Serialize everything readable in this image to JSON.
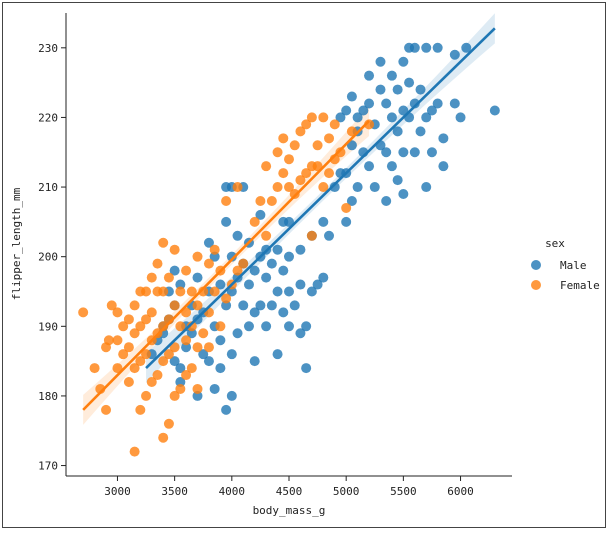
{
  "chart_data": {
    "type": "scatter",
    "title": "",
    "xlabel": "body_mass_g",
    "ylabel": "flipper_length_mm",
    "xlim": [
      2550,
      6450
    ],
    "ylim": [
      168.5,
      235
    ],
    "x_ticks": [
      3000,
      3500,
      4000,
      4500,
      5000,
      5500,
      6000
    ],
    "y_ticks": [
      170,
      180,
      190,
      200,
      210,
      220,
      230
    ],
    "grid": false,
    "legend": {
      "title": "sex",
      "position": "right",
      "entries": [
        "Male",
        "Female"
      ]
    },
    "colors": {
      "Male": "#1f77b4",
      "Female": "#ff7f0e"
    },
    "series": [
      {
        "name": "Male",
        "color": "#1f77b4",
        "regression": {
          "x0": 3250,
          "y0": 184.0,
          "x1": 6300,
          "y1": 232.8,
          "ci": 1.6
        },
        "points": [
          [
            3300,
            186
          ],
          [
            3350,
            188
          ],
          [
            3400,
            189
          ],
          [
            3400,
            190
          ],
          [
            3450,
            191
          ],
          [
            3450,
            195
          ],
          [
            3500,
            185
          ],
          [
            3500,
            193
          ],
          [
            3500,
            198
          ],
          [
            3550,
            182
          ],
          [
            3550,
            184
          ],
          [
            3550,
            196
          ],
          [
            3600,
            187
          ],
          [
            3600,
            190
          ],
          [
            3650,
            189
          ],
          [
            3650,
            193
          ],
          [
            3700,
            180
          ],
          [
            3700,
            191
          ],
          [
            3700,
            197
          ],
          [
            3750,
            186
          ],
          [
            3750,
            192
          ],
          [
            3800,
            185
          ],
          [
            3800,
            195
          ],
          [
            3800,
            202
          ],
          [
            3850,
            181
          ],
          [
            3850,
            190
          ],
          [
            3850,
            200
          ],
          [
            3900,
            184
          ],
          [
            3900,
            188
          ],
          [
            3900,
            196
          ],
          [
            3950,
            178
          ],
          [
            3950,
            193
          ],
          [
            3950,
            205
          ],
          [
            3950,
            210
          ],
          [
            4000,
            180
          ],
          [
            4000,
            186
          ],
          [
            4000,
            195
          ],
          [
            4000,
            200
          ],
          [
            4000,
            210
          ],
          [
            4050,
            189
          ],
          [
            4050,
            197
          ],
          [
            4050,
            203
          ],
          [
            4100,
            193
          ],
          [
            4100,
            199
          ],
          [
            4100,
            210
          ],
          [
            4150,
            190
          ],
          [
            4150,
            196
          ],
          [
            4150,
            202
          ],
          [
            4200,
            185
          ],
          [
            4200,
            192
          ],
          [
            4200,
            198
          ],
          [
            4250,
            193
          ],
          [
            4250,
            200
          ],
          [
            4250,
            206
          ],
          [
            4300,
            190
          ],
          [
            4300,
            197
          ],
          [
            4300,
            201
          ],
          [
            4350,
            193
          ],
          [
            4350,
            199
          ],
          [
            4400,
            186
          ],
          [
            4400,
            195
          ],
          [
            4400,
            201
          ],
          [
            4450,
            192
          ],
          [
            4450,
            198
          ],
          [
            4450,
            205
          ],
          [
            4500,
            190
          ],
          [
            4500,
            195
          ],
          [
            4500,
            200
          ],
          [
            4500,
            205
          ],
          [
            4550,
            193
          ],
          [
            4600,
            189
          ],
          [
            4600,
            196
          ],
          [
            4600,
            201
          ],
          [
            4650,
            184
          ],
          [
            4650,
            190
          ],
          [
            4700,
            195
          ],
          [
            4700,
            203
          ],
          [
            4750,
            196
          ],
          [
            4800,
            197
          ],
          [
            4800,
            205
          ],
          [
            4850,
            203
          ],
          [
            4900,
            210
          ],
          [
            4950,
            212
          ],
          [
            4950,
            220
          ],
          [
            5000,
            205
          ],
          [
            5000,
            212
          ],
          [
            5000,
            221
          ],
          [
            5050,
            208
          ],
          [
            5050,
            216
          ],
          [
            5050,
            223
          ],
          [
            5100,
            210
          ],
          [
            5100,
            218
          ],
          [
            5100,
            220
          ],
          [
            5150,
            215
          ],
          [
            5150,
            221
          ],
          [
            5200,
            213
          ],
          [
            5200,
            222
          ],
          [
            5200,
            226
          ],
          [
            5250,
            210
          ],
          [
            5250,
            219
          ],
          [
            5300,
            216
          ],
          [
            5300,
            224
          ],
          [
            5300,
            228
          ],
          [
            5350,
            208
          ],
          [
            5350,
            215
          ],
          [
            5350,
            222
          ],
          [
            5400,
            213
          ],
          [
            5400,
            220
          ],
          [
            5400,
            226
          ],
          [
            5450,
            211
          ],
          [
            5450,
            218
          ],
          [
            5450,
            224
          ],
          [
            5500,
            209
          ],
          [
            5500,
            215
          ],
          [
            5500,
            221
          ],
          [
            5500,
            228
          ],
          [
            5550,
            220
          ],
          [
            5550,
            225
          ],
          [
            5550,
            230
          ],
          [
            5600,
            215
          ],
          [
            5600,
            222
          ],
          [
            5600,
            230
          ],
          [
            5650,
            218
          ],
          [
            5650,
            224
          ],
          [
            5700,
            210
          ],
          [
            5700,
            220
          ],
          [
            5700,
            230
          ],
          [
            5750,
            215
          ],
          [
            5750,
            221
          ],
          [
            5800,
            222
          ],
          [
            5800,
            230
          ],
          [
            5850,
            213
          ],
          [
            5850,
            217
          ],
          [
            5950,
            222
          ],
          [
            5950,
            229
          ],
          [
            6000,
            220
          ],
          [
            6050,
            230
          ],
          [
            6300,
            221
          ]
        ]
      },
      {
        "name": "Female",
        "color": "#ff7f0e",
        "regression": {
          "x0": 2700,
          "y0": 178.0,
          "x1": 5200,
          "y1": 219.5,
          "ci": 1.6
        },
        "points": [
          [
            2700,
            192
          ],
          [
            2800,
            184
          ],
          [
            2850,
            181
          ],
          [
            2900,
            187
          ],
          [
            2900,
            178
          ],
          [
            2925,
            188
          ],
          [
            2950,
            193
          ],
          [
            3000,
            184
          ],
          [
            3000,
            188
          ],
          [
            3000,
            192
          ],
          [
            3050,
            186
          ],
          [
            3050,
            190
          ],
          [
            3100,
            182
          ],
          [
            3100,
            187
          ],
          [
            3100,
            191
          ],
          [
            3150,
            172
          ],
          [
            3150,
            184
          ],
          [
            3150,
            189
          ],
          [
            3150,
            193
          ],
          [
            3200,
            178
          ],
          [
            3200,
            185
          ],
          [
            3200,
            190
          ],
          [
            3200,
            195
          ],
          [
            3250,
            180
          ],
          [
            3250,
            186
          ],
          [
            3250,
            191
          ],
          [
            3250,
            195
          ],
          [
            3300,
            182
          ],
          [
            3300,
            188
          ],
          [
            3300,
            192
          ],
          [
            3300,
            197
          ],
          [
            3350,
            183
          ],
          [
            3350,
            189
          ],
          [
            3350,
            195
          ],
          [
            3350,
            199
          ],
          [
            3400,
            174
          ],
          [
            3400,
            185
          ],
          [
            3400,
            190
          ],
          [
            3400,
            195
          ],
          [
            3400,
            202
          ],
          [
            3450,
            176
          ],
          [
            3450,
            186
          ],
          [
            3450,
            191
          ],
          [
            3450,
            197
          ],
          [
            3500,
            180
          ],
          [
            3500,
            187
          ],
          [
            3500,
            193
          ],
          [
            3500,
            201
          ],
          [
            3550,
            181
          ],
          [
            3550,
            190
          ],
          [
            3550,
            195
          ],
          [
            3600,
            183
          ],
          [
            3600,
            188
          ],
          [
            3600,
            192
          ],
          [
            3600,
            198
          ],
          [
            3650,
            184
          ],
          [
            3650,
            190
          ],
          [
            3650,
            195
          ],
          [
            3700,
            181
          ],
          [
            3700,
            187
          ],
          [
            3700,
            193
          ],
          [
            3700,
            200
          ],
          [
            3750,
            189
          ],
          [
            3750,
            195
          ],
          [
            3800,
            187
          ],
          [
            3800,
            192
          ],
          [
            3800,
            199
          ],
          [
            3850,
            195
          ],
          [
            3850,
            201
          ],
          [
            3900,
            190
          ],
          [
            3900,
            198
          ],
          [
            3950,
            194
          ],
          [
            3950,
            208
          ],
          [
            4000,
            196
          ],
          [
            4050,
            198
          ],
          [
            4050,
            210
          ],
          [
            4100,
            199
          ],
          [
            4200,
            205
          ],
          [
            4250,
            208
          ],
          [
            4300,
            203
          ],
          [
            4300,
            213
          ],
          [
            4350,
            208
          ],
          [
            4400,
            210
          ],
          [
            4400,
            215
          ],
          [
            4450,
            212
          ],
          [
            4450,
            217
          ],
          [
            4500,
            210
          ],
          [
            4500,
            214
          ],
          [
            4550,
            209
          ],
          [
            4550,
            216
          ],
          [
            4600,
            211
          ],
          [
            4600,
            218
          ],
          [
            4650,
            212
          ],
          [
            4650,
            219
          ],
          [
            4700,
            203
          ],
          [
            4700,
            213
          ],
          [
            4700,
            220
          ],
          [
            4750,
            213
          ],
          [
            4750,
            216
          ],
          [
            4800,
            210
          ],
          [
            4800,
            220
          ],
          [
            4850,
            212
          ],
          [
            4850,
            217
          ],
          [
            4900,
            214
          ],
          [
            4900,
            219
          ],
          [
            4950,
            215
          ],
          [
            5000,
            207
          ],
          [
            5050,
            218
          ],
          [
            5200,
            219
          ]
        ]
      }
    ]
  }
}
